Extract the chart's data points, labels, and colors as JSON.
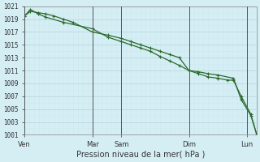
{
  "title": "",
  "xlabel": "Pression niveau de la mer( hPa )",
  "background_color": "#d4eef4",
  "grid_color_major": "#b8d8e0",
  "grid_color_minor": "#cce8f0",
  "line_color": "#2d6a2d",
  "ylim": [
    1001,
    1021
  ],
  "ytick_step": 2,
  "day_labels": [
    "Ven",
    "Mar",
    "Sam",
    "Dim",
    "Lun"
  ],
  "day_x": [
    0,
    3.5,
    5.0,
    8.5,
    11.5
  ],
  "vline_x": [
    0,
    3.5,
    5.0,
    8.5,
    11.5
  ],
  "total_days": 12.0,
  "series1_x": [
    0.0,
    0.3,
    0.7,
    1.1,
    1.5,
    2.0,
    2.5,
    3.5,
    4.3,
    5.0,
    5.5,
    6.0,
    6.5,
    7.0,
    7.5,
    8.0,
    8.5,
    9.0,
    9.5,
    10.0,
    10.8,
    11.2,
    11.7,
    12.0
  ],
  "series1_y": [
    1019.5,
    1020.2,
    1020.0,
    1019.8,
    1019.5,
    1019.0,
    1018.5,
    1017.0,
    1016.5,
    1016.0,
    1015.5,
    1015.0,
    1014.5,
    1014.0,
    1013.5,
    1013.0,
    1011.0,
    1010.8,
    1010.5,
    1010.3,
    1009.8,
    1006.5,
    1004.0,
    1001.1
  ],
  "series2_x": [
    0.0,
    0.3,
    0.7,
    1.1,
    2.0,
    3.5,
    4.3,
    5.0,
    5.5,
    6.0,
    6.5,
    7.0,
    7.5,
    8.0,
    8.5,
    9.0,
    9.5,
    10.0,
    10.5,
    10.8,
    11.2,
    11.7,
    12.0
  ],
  "series2_y": [
    1019.5,
    1020.5,
    1019.8,
    1019.3,
    1018.5,
    1017.5,
    1016.2,
    1015.5,
    1015.0,
    1014.5,
    1014.0,
    1013.2,
    1012.5,
    1011.8,
    1011.0,
    1010.5,
    1010.0,
    1009.8,
    1009.5,
    1009.5,
    1007.0,
    1004.2,
    1001.1
  ]
}
